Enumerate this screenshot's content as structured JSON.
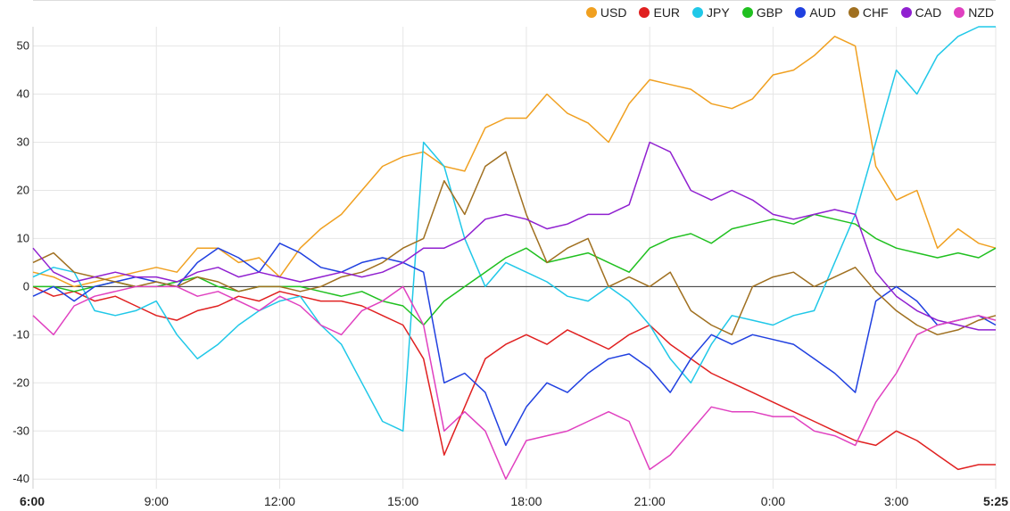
{
  "chart_data": {
    "type": "line",
    "title": "",
    "xlabel": "",
    "ylabel": "",
    "ylim": [
      -42,
      54
    ],
    "yticks": [
      50,
      40,
      30,
      20,
      10,
      0,
      -10,
      -20,
      -30,
      -40
    ],
    "xticks": [
      "6:00",
      "9:00",
      "12:00",
      "15:00",
      "18:00",
      "21:00",
      "0:00",
      "3:00",
      "5:25"
    ],
    "x_hours": [
      0,
      3,
      6,
      9,
      12,
      15,
      18,
      21,
      23.4167
    ],
    "xlim": [
      0,
      23.4167
    ],
    "grid": true,
    "legend_position": "top-right",
    "series": [
      {
        "name": "USD",
        "color": "#f0a020",
        "x": [
          0,
          0.5,
          1,
          1.5,
          2,
          2.5,
          3,
          3.5,
          4,
          4.5,
          5,
          5.5,
          6,
          6.5,
          7,
          7.5,
          8,
          8.5,
          9,
          9.5,
          10,
          10.5,
          11,
          11.5,
          12,
          12.5,
          13,
          13.5,
          14,
          14.5,
          15,
          15.5,
          16,
          16.5,
          17,
          17.5,
          18,
          18.5,
          19,
          19.5,
          20,
          20.5,
          21,
          21.5,
          22,
          22.5,
          23,
          23.4167
        ],
        "y": [
          3,
          2,
          0,
          1,
          2,
          3,
          4,
          3,
          8,
          8,
          5,
          6,
          2,
          8,
          12,
          15,
          20,
          25,
          27,
          28,
          25,
          24,
          33,
          35,
          35,
          40,
          36,
          34,
          30,
          38,
          43,
          42,
          41,
          38,
          37,
          39,
          44,
          45,
          48,
          52,
          50,
          25,
          18,
          20,
          8,
          12,
          9,
          8
        ]
      },
      {
        "name": "EUR",
        "color": "#e02020",
        "x": [
          0,
          0.5,
          1,
          1.5,
          2,
          2.5,
          3,
          3.5,
          4,
          4.5,
          5,
          5.5,
          6,
          6.5,
          7,
          7.5,
          8,
          8.5,
          9,
          9.5,
          10,
          10.5,
          11,
          11.5,
          12,
          12.5,
          13,
          13.5,
          14,
          14.5,
          15,
          15.5,
          16,
          16.5,
          17,
          17.5,
          18,
          18.5,
          19,
          19.5,
          20,
          20.5,
          21,
          21.5,
          22,
          22.5,
          23,
          23.4167
        ],
        "y": [
          0,
          -2,
          -1,
          -3,
          -2,
          -4,
          -6,
          -7,
          -5,
          -4,
          -2,
          -3,
          -1,
          -2,
          -3,
          -3,
          -4,
          -6,
          -8,
          -15,
          -35,
          -25,
          -15,
          -12,
          -10,
          -12,
          -9,
          -11,
          -13,
          -10,
          -8,
          -12,
          -15,
          -18,
          -20,
          -22,
          -24,
          -26,
          -28,
          -30,
          -32,
          -33,
          -30,
          -32,
          -35,
          -38,
          -37,
          -37
        ]
      },
      {
        "name": "JPY",
        "color": "#20c8e8",
        "x": [
          0,
          0.5,
          1,
          1.5,
          2,
          2.5,
          3,
          3.5,
          4,
          4.5,
          5,
          5.5,
          6,
          6.5,
          7,
          7.5,
          8,
          8.5,
          9,
          9.5,
          10,
          10.5,
          11,
          11.5,
          12,
          12.5,
          13,
          13.5,
          14,
          14.5,
          15,
          15.5,
          16,
          16.5,
          17,
          17.5,
          18,
          18.5,
          19,
          19.5,
          20,
          20.5,
          21,
          21.5,
          22,
          22.5,
          23,
          23.4167
        ],
        "y": [
          2,
          4,
          3,
          -5,
          -6,
          -5,
          -3,
          -10,
          -15,
          -12,
          -8,
          -5,
          -3,
          -2,
          -8,
          -12,
          -20,
          -28,
          -30,
          30,
          25,
          10,
          0,
          5,
          3,
          1,
          -2,
          -3,
          0,
          -3,
          -8,
          -15,
          -20,
          -12,
          -6,
          -7,
          -8,
          -6,
          -5,
          5,
          15,
          30,
          45,
          40,
          48,
          52,
          54,
          54
        ]
      },
      {
        "name": "GBP",
        "color": "#20c020",
        "x": [
          0,
          0.5,
          1,
          1.5,
          2,
          2.5,
          3,
          3.5,
          4,
          4.5,
          5,
          5.5,
          6,
          6.5,
          7,
          7.5,
          8,
          8.5,
          9,
          9.5,
          10,
          10.5,
          11,
          11.5,
          12,
          12.5,
          13,
          13.5,
          14,
          14.5,
          15,
          15.5,
          16,
          16.5,
          17,
          17.5,
          18,
          18.5,
          19,
          19.5,
          20,
          20.5,
          21,
          21.5,
          22,
          22.5,
          23,
          23.4167
        ],
        "y": [
          0,
          0,
          -1,
          0,
          1,
          0,
          0,
          1,
          2,
          0,
          -1,
          0,
          0,
          0,
          -1,
          -2,
          -1,
          -3,
          -4,
          -8,
          -3,
          0,
          3,
          6,
          8,
          5,
          6,
          7,
          5,
          3,
          8,
          10,
          11,
          9,
          12,
          13,
          14,
          13,
          15,
          14,
          13,
          10,
          8,
          7,
          6,
          7,
          6,
          8
        ]
      },
      {
        "name": "AUD",
        "color": "#2040e0",
        "x": [
          0,
          0.5,
          1,
          1.5,
          2,
          2.5,
          3,
          3.5,
          4,
          4.5,
          5,
          5.5,
          6,
          6.5,
          7,
          7.5,
          8,
          8.5,
          9,
          9.5,
          10,
          10.5,
          11,
          11.5,
          12,
          12.5,
          13,
          13.5,
          14,
          14.5,
          15,
          15.5,
          16,
          16.5,
          17,
          17.5,
          18,
          18.5,
          19,
          19.5,
          20,
          20.5,
          21,
          21.5,
          22,
          22.5,
          23,
          23.4167
        ],
        "y": [
          -2,
          0,
          -3,
          0,
          1,
          2,
          1,
          0,
          5,
          8,
          6,
          3,
          9,
          7,
          4,
          3,
          5,
          6,
          5,
          3,
          -20,
          -18,
          -22,
          -33,
          -25,
          -20,
          -22,
          -18,
          -15,
          -14,
          -17,
          -22,
          -15,
          -10,
          -12,
          -10,
          -11,
          -12,
          -15,
          -18,
          -22,
          -3,
          0,
          -3,
          -8,
          -7,
          -6,
          -8
        ]
      },
      {
        "name": "CHF",
        "color": "#a07020",
        "x": [
          0,
          0.5,
          1,
          1.5,
          2,
          2.5,
          3,
          3.5,
          4,
          4.5,
          5,
          5.5,
          6,
          6.5,
          7,
          7.5,
          8,
          8.5,
          9,
          9.5,
          10,
          10.5,
          11,
          11.5,
          12,
          12.5,
          13,
          13.5,
          14,
          14.5,
          15,
          15.5,
          16,
          16.5,
          17,
          17.5,
          18,
          18.5,
          19,
          19.5,
          20,
          20.5,
          21,
          21.5,
          22,
          22.5,
          23,
          23.4167
        ],
        "y": [
          5,
          7,
          3,
          2,
          1,
          0,
          1,
          0,
          2,
          1,
          -1,
          0,
          0,
          -1,
          0,
          2,
          3,
          5,
          8,
          10,
          22,
          15,
          25,
          28,
          15,
          5,
          8,
          10,
          0,
          2,
          0,
          3,
          -5,
          -8,
          -10,
          0,
          2,
          3,
          0,
          2,
          4,
          -1,
          -5,
          -8,
          -10,
          -9,
          -7,
          -6
        ]
      },
      {
        "name": "CAD",
        "color": "#9020d0",
        "x": [
          0,
          0.5,
          1,
          1.5,
          2,
          2.5,
          3,
          3.5,
          4,
          4.5,
          5,
          5.5,
          6,
          6.5,
          7,
          7.5,
          8,
          8.5,
          9,
          9.5,
          10,
          10.5,
          11,
          11.5,
          12,
          12.5,
          13,
          13.5,
          14,
          14.5,
          15,
          15.5,
          16,
          16.5,
          17,
          17.5,
          18,
          18.5,
          19,
          19.5,
          20,
          20.5,
          21,
          21.5,
          22,
          22.5,
          23,
          23.4167
        ],
        "y": [
          8,
          3,
          1,
          2,
          3,
          2,
          2,
          1,
          3,
          4,
          2,
          3,
          2,
          1,
          2,
          3,
          2,
          3,
          5,
          8,
          8,
          10,
          14,
          15,
          14,
          12,
          13,
          15,
          15,
          17,
          30,
          28,
          20,
          18,
          20,
          18,
          15,
          14,
          15,
          16,
          15,
          3,
          -2,
          -5,
          -7,
          -8,
          -9,
          -9
        ]
      },
      {
        "name": "NZD",
        "color": "#e040c0",
        "x": [
          0,
          0.5,
          1,
          1.5,
          2,
          2.5,
          3,
          3.5,
          4,
          4.5,
          5,
          5.5,
          6,
          6.5,
          7,
          7.5,
          8,
          8.5,
          9,
          9.5,
          10,
          10.5,
          11,
          11.5,
          12,
          12.5,
          13,
          13.5,
          14,
          14.5,
          15,
          15.5,
          16,
          16.5,
          17,
          17.5,
          18,
          18.5,
          19,
          19.5,
          20,
          20.5,
          21,
          21.5,
          22,
          22.5,
          23,
          23.4167
        ],
        "y": [
          -6,
          -10,
          -4,
          -2,
          -1,
          0,
          0,
          0,
          -2,
          -1,
          -3,
          -5,
          -2,
          -4,
          -8,
          -10,
          -5,
          -3,
          0,
          -8,
          -30,
          -26,
          -30,
          -40,
          -32,
          -31,
          -30,
          -28,
          -26,
          -28,
          -38,
          -35,
          -30,
          -25,
          -26,
          -26,
          -27,
          -27,
          -30,
          -31,
          -33,
          -24,
          -18,
          -10,
          -8,
          -7,
          -6,
          -7
        ]
      }
    ]
  }
}
